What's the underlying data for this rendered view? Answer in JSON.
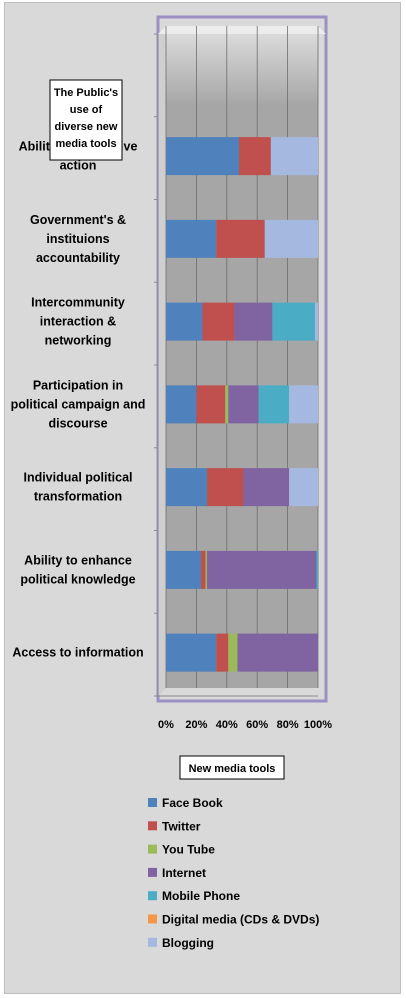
{
  "chart_data": {
    "type": "bar",
    "orientation": "horizontal",
    "stacked": "percent",
    "title": [
      "The Public's",
      "use of",
      "diverse new",
      "media tools"
    ],
    "xlabel": "New media tools",
    "xlim": [
      0,
      100
    ],
    "xticks": [
      "0%",
      "20%",
      "40%",
      "60%",
      "80%",
      "100%"
    ],
    "grid": true,
    "legend_position": "bottom",
    "categories": [
      [
        "Ability for collective",
        "action"
      ],
      [
        "Government's &",
        "instituions",
        "accountability"
      ],
      [
        "Intercommunity",
        "interaction &",
        "networking"
      ],
      [
        "Participation in",
        "political campaign and",
        "discourse"
      ],
      [
        "Individual political",
        "transformation"
      ],
      [
        "Ability to enhance",
        "political knowledge"
      ],
      [
        "Access to information"
      ]
    ],
    "series": [
      {
        "name": "Face Book",
        "color": "#4f81bd",
        "values": [
          48,
          33,
          24,
          20,
          27,
          23,
          33
        ]
      },
      {
        "name": "Twitter",
        "color": "#c0504d",
        "values": [
          21,
          32,
          21,
          19,
          24,
          3,
          8
        ]
      },
      {
        "name": "You Tube",
        "color": "#9bbb59",
        "values": [
          0,
          0,
          0,
          2,
          0,
          1,
          6
        ]
      },
      {
        "name": "Internet",
        "color": "#8064a2",
        "values": [
          0,
          0,
          25,
          20,
          30,
          72,
          53
        ]
      },
      {
        "name": "Mobile Phone",
        "color": "#4bacc6",
        "values": [
          0,
          0,
          28,
          20,
          0,
          1,
          0
        ]
      },
      {
        "name": "Digital media (CDs & DVDs)",
        "color": "#f79646",
        "values": [
          0,
          0,
          0,
          0,
          0,
          0,
          0
        ]
      },
      {
        "name": "Blogging",
        "color": "#a5b9e0",
        "values": [
          31,
          35,
          2,
          19,
          19,
          0,
          0
        ]
      }
    ],
    "colors": {
      "plot_wall": "#a6a6a6",
      "plot_wall_light": "#e0e0e0",
      "frame": "#d9d9d9",
      "plot_border": "#9b8fc4"
    }
  }
}
